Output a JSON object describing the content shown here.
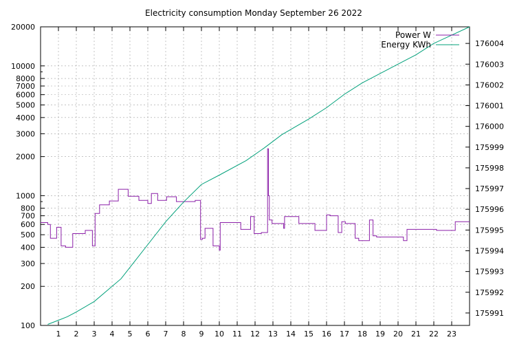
{
  "chart_data": {
    "type": "line",
    "title": "Electricity consumption Monday September 26 2022",
    "xlabel": "",
    "ylabel": "",
    "xlim": [
      0,
      24
    ],
    "ylim": [
      100,
      20000
    ],
    "y_scale": "log",
    "y2lim": [
      175990.4,
      176004.8
    ],
    "grid": true,
    "legend_position": "top-right",
    "x_ticks": [
      "1",
      "2",
      "3",
      "4",
      "5",
      "6",
      "7",
      "8",
      "9",
      "10",
      "11",
      "12",
      "13",
      "14",
      "15",
      "16",
      "17",
      "18",
      "19",
      "20",
      "21",
      "22",
      "23"
    ],
    "y_ticks": [
      {
        "value": 100,
        "label": "100"
      },
      {
        "value": 200,
        "label": "200"
      },
      {
        "value": 300,
        "label": "300"
      },
      {
        "value": 400,
        "label": "400"
      },
      {
        "value": 500,
        "label": "500"
      },
      {
        "value": 600,
        "label": "600"
      },
      {
        "value": 700,
        "label": "700"
      },
      {
        "value": 800,
        "label": "800"
      },
      {
        "value": 1000,
        "label": "1000"
      },
      {
        "value": 2000,
        "label": "2000"
      },
      {
        "value": 3000,
        "label": "3000"
      },
      {
        "value": 4000,
        "label": "4000"
      },
      {
        "value": 5000,
        "label": "5000"
      },
      {
        "value": 6000,
        "label": "6000"
      },
      {
        "value": 7000,
        "label": "7000"
      },
      {
        "value": 8000,
        "label": "8000"
      },
      {
        "value": 10000,
        "label": "10000"
      },
      {
        "value": 20000,
        "label": "20000"
      }
    ],
    "y2_ticks": [
      "175991",
      "175992",
      "175993",
      "175994",
      "175995",
      "175996",
      "175997",
      "175998",
      "175999",
      "176000",
      "176001",
      "176002",
      "176003",
      "176004"
    ],
    "series": [
      {
        "name": "Power W",
        "axis": "y",
        "color": "#8b1fa8",
        "step": true,
        "points": [
          [
            0,
            620
          ],
          [
            0.4,
            600
          ],
          [
            0.55,
            470
          ],
          [
            0.9,
            570
          ],
          [
            1.15,
            410
          ],
          [
            1.4,
            400
          ],
          [
            1.8,
            510
          ],
          [
            2.5,
            540
          ],
          [
            2.9,
            410
          ],
          [
            3.05,
            730
          ],
          [
            3.3,
            850
          ],
          [
            3.85,
            910
          ],
          [
            4.35,
            1120
          ],
          [
            4.9,
            990
          ],
          [
            5.5,
            920
          ],
          [
            6.0,
            870
          ],
          [
            6.2,
            1040
          ],
          [
            6.55,
            920
          ],
          [
            7.05,
            980
          ],
          [
            7.6,
            900
          ],
          [
            8.65,
            920
          ],
          [
            8.95,
            460
          ],
          [
            9.05,
            470
          ],
          [
            9.2,
            560
          ],
          [
            9.65,
            410
          ],
          [
            10.0,
            380
          ],
          [
            10.05,
            620
          ],
          [
            11.2,
            550
          ],
          [
            11.75,
            690
          ],
          [
            11.95,
            510
          ],
          [
            12.35,
            520
          ],
          [
            12.7,
            2300
          ],
          [
            12.75,
            1000
          ],
          [
            12.8,
            650
          ],
          [
            12.95,
            610
          ],
          [
            13.6,
            560
          ],
          [
            13.65,
            690
          ],
          [
            14.45,
            610
          ],
          [
            15.35,
            540
          ],
          [
            16.0,
            710
          ],
          [
            16.2,
            700
          ],
          [
            16.65,
            520
          ],
          [
            16.85,
            630
          ],
          [
            17.05,
            610
          ],
          [
            17.6,
            470
          ],
          [
            17.8,
            450
          ],
          [
            18.4,
            650
          ],
          [
            18.6,
            490
          ],
          [
            18.8,
            480
          ],
          [
            20.3,
            450
          ],
          [
            20.5,
            550
          ],
          [
            22.15,
            540
          ],
          [
            23.2,
            630
          ],
          [
            24,
            630
          ]
        ]
      },
      {
        "name": "Energy KWh",
        "axis": "y2",
        "color": "#00a07a",
        "step": false,
        "points": [
          [
            0.4,
            175990.45
          ],
          [
            1.0,
            175990.65
          ],
          [
            1.5,
            175990.82
          ],
          [
            2.0,
            175991.05
          ],
          [
            3.0,
            175991.55
          ],
          [
            4.5,
            175992.65
          ],
          [
            6.0,
            175994.3
          ],
          [
            7.0,
            175995.4
          ],
          [
            8.0,
            175996.35
          ],
          [
            9.0,
            175997.2
          ],
          [
            10.0,
            175997.65
          ],
          [
            11.5,
            175998.35
          ],
          [
            12.5,
            175998.95
          ],
          [
            13.5,
            175999.6
          ],
          [
            15.0,
            176000.35
          ],
          [
            16.0,
            176000.9
          ],
          [
            17.0,
            176001.55
          ],
          [
            18.0,
            176002.1
          ],
          [
            19.0,
            176002.55
          ],
          [
            20.0,
            176003.0
          ],
          [
            21.0,
            176003.45
          ],
          [
            22.0,
            176004.0
          ],
          [
            24,
            176004.8
          ]
        ]
      }
    ]
  }
}
